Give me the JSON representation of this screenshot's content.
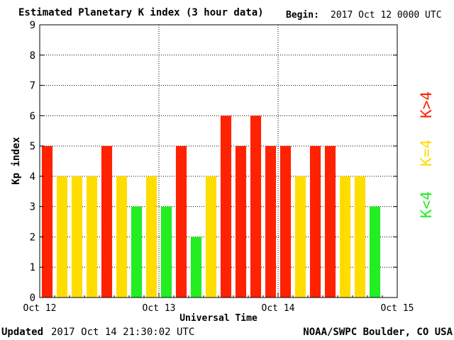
{
  "header": {
    "title": "Estimated Planetary K index (3 hour data)",
    "begin_label": "Begin:",
    "begin_value": "2017 Oct 12 0000 UTC"
  },
  "footer": {
    "updated_label": "Updated",
    "updated_value": "2017 Oct 14 21:30:02 UTC",
    "credit": "NOAA/SWPC Boulder, CO USA"
  },
  "legend": {
    "low": {
      "label": "K<4",
      "color": "#22ee22"
    },
    "mid": {
      "label": "K=4",
      "color": "#ffdd00"
    },
    "high": {
      "label": "K>4",
      "color": "#ff2200"
    }
  },
  "chart_data": {
    "type": "bar",
    "title": "Estimated Planetary K index (3 hour data)",
    "xlabel": "Universal Time",
    "ylabel": "Kp index",
    "ylim": [
      0,
      9
    ],
    "yticks": [
      0,
      1,
      2,
      3,
      4,
      5,
      6,
      7,
      8,
      9
    ],
    "xticks": [
      "Oct 12",
      "Oct 13",
      "Oct 14",
      "Oct 15"
    ],
    "grid": true,
    "interval_hours": 3,
    "values": [
      5,
      4,
      4,
      4,
      5,
      4,
      3,
      4,
      3,
      5,
      2,
      4,
      6,
      5,
      6,
      5,
      5,
      4,
      5,
      5,
      4,
      4,
      3
    ],
    "colors": {
      "lt4": "#22ee22",
      "eq4": "#ffdd00",
      "gt4": "#ff2200"
    }
  }
}
